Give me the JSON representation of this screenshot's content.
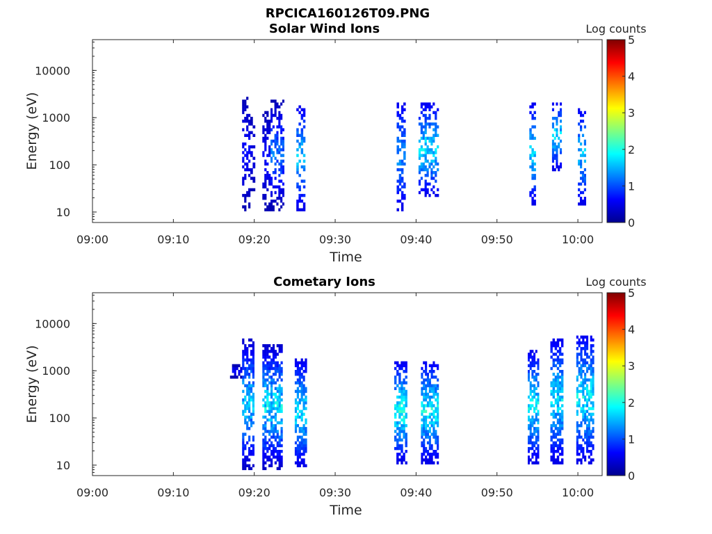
{
  "figure_title": "RPCICA160126T09.PNG",
  "colormap": [
    "#00008f",
    "#0000ff",
    "#0080ff",
    "#00ffff",
    "#80ff80",
    "#ffff00",
    "#ff8000",
    "#ff0000",
    "#800000"
  ],
  "chart_data": [
    {
      "type": "heatmap",
      "title": "Solar Wind Ions",
      "xlabel": "Time",
      "ylabel": "Energy (eV)",
      "xlim": [
        "09:00",
        "10:03"
      ],
      "ylim": [
        6,
        45000
      ],
      "y_scale": "log",
      "x_ticks": [
        "09:00",
        "09:10",
        "09:20",
        "09:30",
        "09:40",
        "09:50",
        "10:00"
      ],
      "y_ticks": [
        "10",
        "100",
        "1000",
        "10000"
      ],
      "colorbar": {
        "label": "Log counts",
        "range": [
          0,
          5
        ],
        "ticks": [
          "0",
          "1",
          "2",
          "3",
          "4",
          "5"
        ]
      },
      "bursts": [
        {
          "start": "09:18.5",
          "end": "09:19.5",
          "energy_min": 12,
          "energy_max": 2500,
          "log_counts": [
            0.2,
            0.8
          ]
        },
        {
          "start": "09:19.5",
          "end": "09:20.1",
          "energy_min": 30,
          "energy_max": 1100,
          "log_counts": [
            0.2,
            0.6
          ]
        },
        {
          "start": "09:21.0",
          "end": "09:22.0",
          "energy_min": 12,
          "energy_max": 1300,
          "log_counts": [
            0.2,
            0.8
          ]
        },
        {
          "start": "09:22.0",
          "end": "09:23.7",
          "energy_min": 12,
          "energy_max": 2100,
          "log_counts": [
            0.2,
            1.5
          ]
        },
        {
          "start": "09:25.2",
          "end": "09:26.3",
          "energy_min": 12,
          "energy_max": 1600,
          "log_counts": [
            0.5,
            1.9
          ]
        },
        {
          "start": "09:37.6",
          "end": "09:38.7",
          "energy_min": 12,
          "energy_max": 2000,
          "log_counts": [
            0.5,
            1.6
          ]
        },
        {
          "start": "09:40.3",
          "end": "09:42.8",
          "energy_min": 22,
          "energy_max": 2000,
          "log_counts": [
            0.5,
            2.1
          ]
        },
        {
          "start": "09:54.0",
          "end": "09:54.8",
          "energy_min": 14,
          "energy_max": 2000,
          "log_counts": [
            0.5,
            2.0
          ]
        },
        {
          "start": "09:56.8",
          "end": "09:58.0",
          "energy_min": 80,
          "energy_max": 2000,
          "log_counts": [
            0.5,
            2.1
          ]
        },
        {
          "start": "10:00.0",
          "end": "10:01.0",
          "energy_min": 15,
          "energy_max": 1600,
          "log_counts": [
            0.5,
            1.9
          ]
        }
      ]
    },
    {
      "type": "heatmap",
      "title": "Cometary Ions",
      "xlabel": "Time",
      "ylabel": "Energy (eV)",
      "xlim": [
        "09:00",
        "10:03"
      ],
      "ylim": [
        6,
        45000
      ],
      "y_scale": "log",
      "x_ticks": [
        "09:00",
        "09:10",
        "09:20",
        "09:30",
        "09:40",
        "09:50",
        "10:00"
      ],
      "y_ticks": [
        "10",
        "100",
        "1000",
        "10000"
      ],
      "colorbar": {
        "label": "Log counts",
        "range": [
          0,
          5
        ],
        "ticks": [
          "0",
          "1",
          "2",
          "3",
          "4",
          "5"
        ]
      },
      "bursts": [
        {
          "start": "09:17.0",
          "end": "09:18.5",
          "energy_min": 700,
          "energy_max": 1200,
          "log_counts": [
            0.2,
            0.8
          ]
        },
        {
          "start": "09:18.5",
          "end": "09:20.0",
          "energy_min": 8,
          "energy_max": 4500,
          "log_counts": [
            0.3,
            2.0
          ]
        },
        {
          "start": "09:21.0",
          "end": "09:23.5",
          "energy_min": 8,
          "energy_max": 3500,
          "log_counts": [
            0.3,
            2.2
          ]
        },
        {
          "start": "09:25.0",
          "end": "09:26.5",
          "energy_min": 10,
          "energy_max": 1600,
          "log_counts": [
            0.5,
            2.1
          ]
        },
        {
          "start": "09:37.3",
          "end": "09:38.9",
          "energy_min": 12,
          "energy_max": 1500,
          "log_counts": [
            0.5,
            2.4
          ]
        },
        {
          "start": "09:40.6",
          "end": "09:42.8",
          "energy_min": 12,
          "energy_max": 1500,
          "log_counts": [
            0.5,
            2.3
          ]
        },
        {
          "start": "09:53.8",
          "end": "09:55.2",
          "energy_min": 12,
          "energy_max": 2500,
          "log_counts": [
            0.5,
            2.2
          ]
        },
        {
          "start": "09:56.6",
          "end": "09:58.2",
          "energy_min": 12,
          "energy_max": 4500,
          "log_counts": [
            0.5,
            2.1
          ]
        },
        {
          "start": "09:59.8",
          "end": "10:02.0",
          "energy_min": 12,
          "energy_max": 5500,
          "log_counts": [
            0.5,
            2.2
          ]
        }
      ]
    }
  ]
}
